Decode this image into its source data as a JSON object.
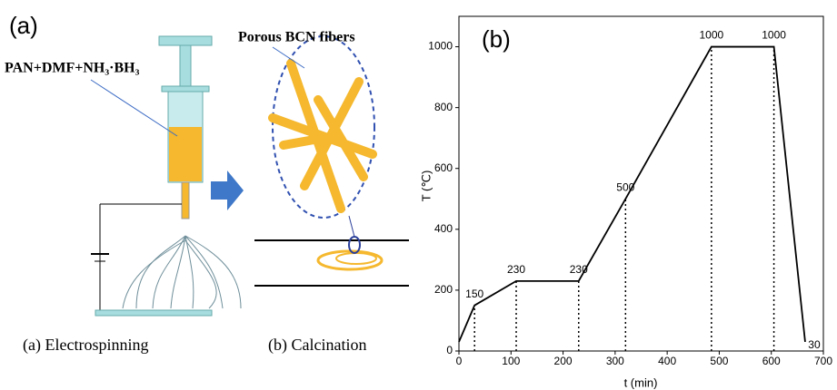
{
  "diagram": {
    "panel_label": "(a)",
    "solution": "PAN+DMF+NH₃·BH₃",
    "fibers": "Porous BCN fibers",
    "step_a": "(a) Electrospinning",
    "step_b": "(b) Calcination"
  },
  "chart_data": {
    "type": "line",
    "panel_label": "(b)",
    "x_label": "t (min)",
    "y_label": "T (℃)",
    "x": [
      0,
      30,
      110,
      230,
      320,
      485,
      605,
      665
    ],
    "series": [
      {
        "color": "#000000",
        "values": [
          30,
          150,
          230,
          230,
          500,
          1000,
          1000,
          30
        ]
      }
    ],
    "xlim": [
      0,
      700
    ],
    "xticks": [
      0,
      100,
      200,
      300,
      400,
      500,
      600,
      700
    ],
    "ylim": [
      0,
      1100
    ],
    "yticks": [
      0,
      200,
      400,
      600,
      800,
      1000
    ]
  }
}
